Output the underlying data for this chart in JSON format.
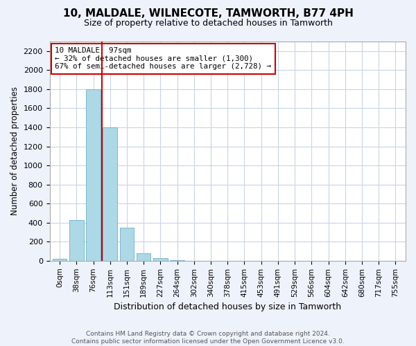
{
  "title": "10, MALDALE, WILNECOTE, TAMWORTH, B77 4PH",
  "subtitle": "Size of property relative to detached houses in Tamworth",
  "xlabel": "Distribution of detached houses by size in Tamworth",
  "ylabel": "Number of detached properties",
  "bar_values": [
    20,
    430,
    1800,
    1400,
    350,
    80,
    25,
    5,
    0,
    0,
    0,
    0,
    0,
    0,
    0,
    0,
    0,
    0,
    0,
    0,
    0
  ],
  "bar_labels": [
    "0sqm",
    "38sqm",
    "76sqm",
    "113sqm",
    "151sqm",
    "189sqm",
    "227sqm",
    "264sqm",
    "302sqm",
    "340sqm",
    "378sqm",
    "415sqm",
    "453sqm",
    "491sqm",
    "529sqm",
    "566sqm",
    "604sqm",
    "642sqm",
    "680sqm",
    "717sqm",
    "755sqm"
  ],
  "bar_color": "#add8e6",
  "bar_edge_color": "#7ab8d4",
  "highlight_line_color": "#cc0000",
  "annotation_box_text": "10 MALDALE: 97sqm\n← 32% of detached houses are smaller (1,300)\n67% of semi-detached houses are larger (2,728) →",
  "ylim": [
    0,
    2300
  ],
  "yticks": [
    0,
    200,
    400,
    600,
    800,
    1000,
    1200,
    1400,
    1600,
    1800,
    2000,
    2200
  ],
  "footer_line1": "Contains HM Land Registry data © Crown copyright and database right 2024.",
  "footer_line2": "Contains public sector information licensed under the Open Government Licence v3.0.",
  "bg_color": "#eef2fb",
  "plot_bg_color": "#ffffff",
  "grid_color": "#c8d4e8",
  "red_line_x": 2.5
}
